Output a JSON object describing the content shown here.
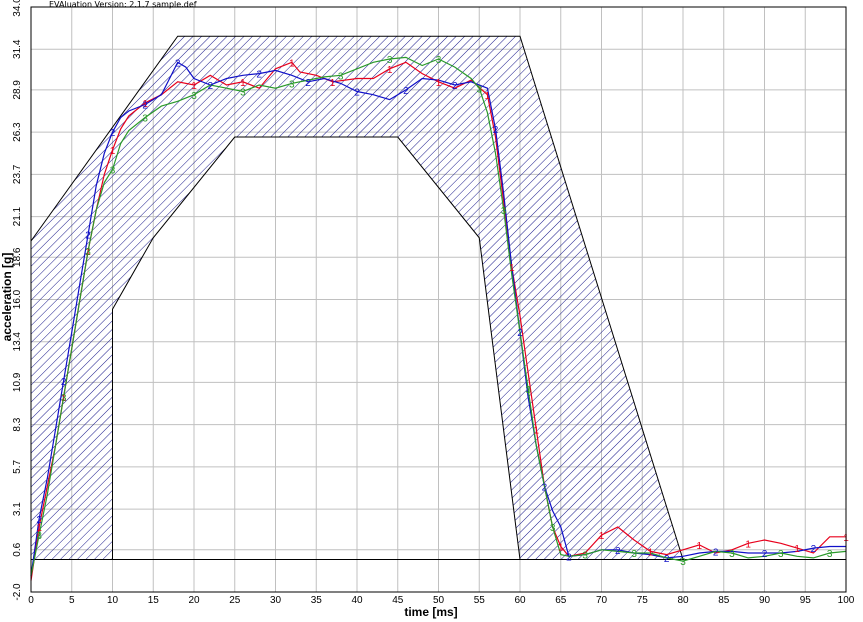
{
  "app_title": "EVAluation Version: 2.1.7 sample.def",
  "chart_data": {
    "type": "line",
    "xlabel": "time [ms]",
    "ylabel": "acceleration [g]",
    "xlim": [
      0,
      100
    ],
    "ylim": [
      -2.0,
      34.0
    ],
    "x_ticks": [
      "0",
      "5",
      "10",
      "15",
      "20",
      "25",
      "30",
      "35",
      "40",
      "45",
      "50",
      "55",
      "60",
      "65",
      "70",
      "75",
      "80",
      "85",
      "90",
      "95",
      "100"
    ],
    "y_ticks": [
      "-2.0",
      "0.6",
      "3.1",
      "5.7",
      "8.3",
      "10.9",
      "13.4",
      "16.0",
      "18.6",
      "21.1",
      "23.7",
      "26.3",
      "28.9",
      "31.4",
      "34.0"
    ],
    "grid": true,
    "corridor": {
      "color": "#000080",
      "upper": [
        [
          0,
          19.6
        ],
        [
          18,
          32.2
        ],
        [
          60,
          32.2
        ],
        [
          80,
          0
        ]
      ],
      "lower": [
        [
          10,
          0
        ],
        [
          10,
          15.4
        ],
        [
          15,
          19.8
        ],
        [
          25,
          26.0
        ],
        [
          45,
          26.0
        ],
        [
          55,
          19.8
        ],
        [
          60,
          0
        ]
      ]
    },
    "baseline": 0,
    "series": [
      {
        "marker": "1",
        "color": "#e8001c",
        "points": [
          [
            0,
            -1.3
          ],
          [
            1,
            2
          ],
          [
            2,
            4.5
          ],
          [
            3,
            7
          ],
          [
            4,
            10
          ],
          [
            5,
            13
          ],
          [
            6,
            16
          ],
          [
            7,
            19
          ],
          [
            8,
            21.5
          ],
          [
            9,
            23.7
          ],
          [
            10,
            25.2
          ],
          [
            11,
            26.5
          ],
          [
            12,
            27.3
          ],
          [
            14,
            28.1
          ],
          [
            16,
            28.6
          ],
          [
            18,
            29.4
          ],
          [
            20,
            29.2
          ],
          [
            22,
            29.8
          ],
          [
            24,
            29.2
          ],
          [
            26,
            29.4
          ],
          [
            28,
            29.0
          ],
          [
            30,
            30.2
          ],
          [
            32,
            30.6
          ],
          [
            33,
            30.0
          ],
          [
            35,
            29.8
          ],
          [
            37,
            29.4
          ],
          [
            40,
            29.6
          ],
          [
            42,
            29.6
          ],
          [
            44,
            30.2
          ],
          [
            46,
            30.6
          ],
          [
            48,
            29.9
          ],
          [
            50,
            29.4
          ],
          [
            52,
            29.0
          ],
          [
            54,
            29.5
          ],
          [
            56,
            28.6
          ],
          [
            57,
            26.0
          ],
          [
            58,
            22.0
          ],
          [
            59,
            18.0
          ],
          [
            60,
            15.0
          ],
          [
            61,
            11.5
          ],
          [
            62,
            8.0
          ],
          [
            63,
            4.5
          ],
          [
            64,
            2.0
          ],
          [
            65,
            0.8
          ],
          [
            66,
            0.2
          ],
          [
            68,
            0.4
          ],
          [
            70,
            1.5
          ],
          [
            72,
            2.0
          ],
          [
            74,
            1.2
          ],
          [
            76,
            0.5
          ],
          [
            78,
            0.3
          ],
          [
            80,
            0.6
          ],
          [
            82,
            0.9
          ],
          [
            84,
            0.4
          ],
          [
            86,
            0.6
          ],
          [
            88,
            1.0
          ],
          [
            90,
            1.2
          ],
          [
            92,
            1.0
          ],
          [
            94,
            0.7
          ],
          [
            96,
            0.4
          ],
          [
            98,
            1.4
          ],
          [
            100,
            1.4
          ]
        ]
      },
      {
        "marker": "2",
        "color": "#1010c8",
        "points": [
          [
            0,
            -1.0
          ],
          [
            1,
            2.5
          ],
          [
            2,
            5
          ],
          [
            3,
            8
          ],
          [
            4,
            11
          ],
          [
            5,
            14
          ],
          [
            6,
            17
          ],
          [
            7,
            20
          ],
          [
            8,
            23
          ],
          [
            9,
            25
          ],
          [
            10,
            26.3
          ],
          [
            11,
            27.2
          ],
          [
            12,
            27.6
          ],
          [
            14,
            28.0
          ],
          [
            16,
            28.6
          ],
          [
            17,
            29.6
          ],
          [
            18,
            30.6
          ],
          [
            19,
            30.3
          ],
          [
            20,
            29.6
          ],
          [
            22,
            29.2
          ],
          [
            24,
            29.6
          ],
          [
            26,
            29.8
          ],
          [
            28,
            29.9
          ],
          [
            30,
            30.1
          ],
          [
            32,
            29.8
          ],
          [
            34,
            29.4
          ],
          [
            36,
            29.6
          ],
          [
            38,
            29.3
          ],
          [
            40,
            28.8
          ],
          [
            42,
            28.6
          ],
          [
            44,
            28.3
          ],
          [
            46,
            28.9
          ],
          [
            48,
            29.6
          ],
          [
            50,
            29.5
          ],
          [
            52,
            29.2
          ],
          [
            54,
            29.4
          ],
          [
            56,
            29.0
          ],
          [
            57,
            26.5
          ],
          [
            58,
            22.5
          ],
          [
            59,
            18.0
          ],
          [
            60,
            14.0
          ],
          [
            61,
            10.0
          ],
          [
            62,
            7.0
          ],
          [
            63,
            4.5
          ],
          [
            64,
            3.0
          ],
          [
            65,
            2.0
          ],
          [
            66,
            0.2
          ],
          [
            68,
            0.3
          ],
          [
            70,
            0.6
          ],
          [
            72,
            0.6
          ],
          [
            74,
            0.4
          ],
          [
            76,
            0.3
          ],
          [
            78,
            0.1
          ],
          [
            80,
            0.2
          ],
          [
            82,
            0.4
          ],
          [
            84,
            0.5
          ],
          [
            86,
            0.5
          ],
          [
            88,
            0.4
          ],
          [
            90,
            0.4
          ],
          [
            92,
            0.4
          ],
          [
            94,
            0.5
          ],
          [
            96,
            0.7
          ],
          [
            98,
            0.8
          ],
          [
            100,
            0.8
          ]
        ]
      },
      {
        "marker": "3",
        "color": "#2a9a2a",
        "points": [
          [
            0,
            -1.0
          ],
          [
            1,
            1.5
          ],
          [
            2,
            4
          ],
          [
            3,
            7
          ],
          [
            4,
            10
          ],
          [
            5,
            13
          ],
          [
            6,
            16
          ],
          [
            7,
            19
          ],
          [
            8,
            21.5
          ],
          [
            9,
            23.2
          ],
          [
            10,
            24.0
          ],
          [
            11,
            25.6
          ],
          [
            12,
            26.4
          ],
          [
            14,
            27.2
          ],
          [
            16,
            27.9
          ],
          [
            18,
            28.2
          ],
          [
            20,
            28.6
          ],
          [
            22,
            29.2
          ],
          [
            24,
            29.0
          ],
          [
            26,
            28.8
          ],
          [
            28,
            29.2
          ],
          [
            30,
            29.0
          ],
          [
            32,
            29.3
          ],
          [
            34,
            29.5
          ],
          [
            36,
            29.7
          ],
          [
            38,
            29.8
          ],
          [
            40,
            30.2
          ],
          [
            42,
            30.6
          ],
          [
            44,
            30.8
          ],
          [
            46,
            30.9
          ],
          [
            48,
            30.4
          ],
          [
            50,
            30.8
          ],
          [
            52,
            30.3
          ],
          [
            54,
            29.6
          ],
          [
            55,
            29.0
          ],
          [
            56,
            27.5
          ],
          [
            57,
            25.0
          ],
          [
            58,
            21.5
          ],
          [
            59,
            17.5
          ],
          [
            60,
            14.0
          ],
          [
            61,
            10.5
          ],
          [
            62,
            7.0
          ],
          [
            63,
            4.5
          ],
          [
            64,
            2.0
          ],
          [
            65,
            0.3
          ],
          [
            66,
            0.2
          ],
          [
            68,
            0.3
          ],
          [
            70,
            0.6
          ],
          [
            72,
            0.5
          ],
          [
            74,
            0.4
          ],
          [
            76,
            0.4
          ],
          [
            78,
            0.1
          ],
          [
            80,
            -0.1
          ],
          [
            82,
            0.2
          ],
          [
            84,
            0.5
          ],
          [
            86,
            0.4
          ],
          [
            88,
            0.1
          ],
          [
            90,
            0.2
          ],
          [
            92,
            0.4
          ],
          [
            94,
            0.2
          ],
          [
            96,
            0.1
          ],
          [
            98,
            0.4
          ],
          [
            100,
            0.5
          ]
        ]
      }
    ]
  }
}
